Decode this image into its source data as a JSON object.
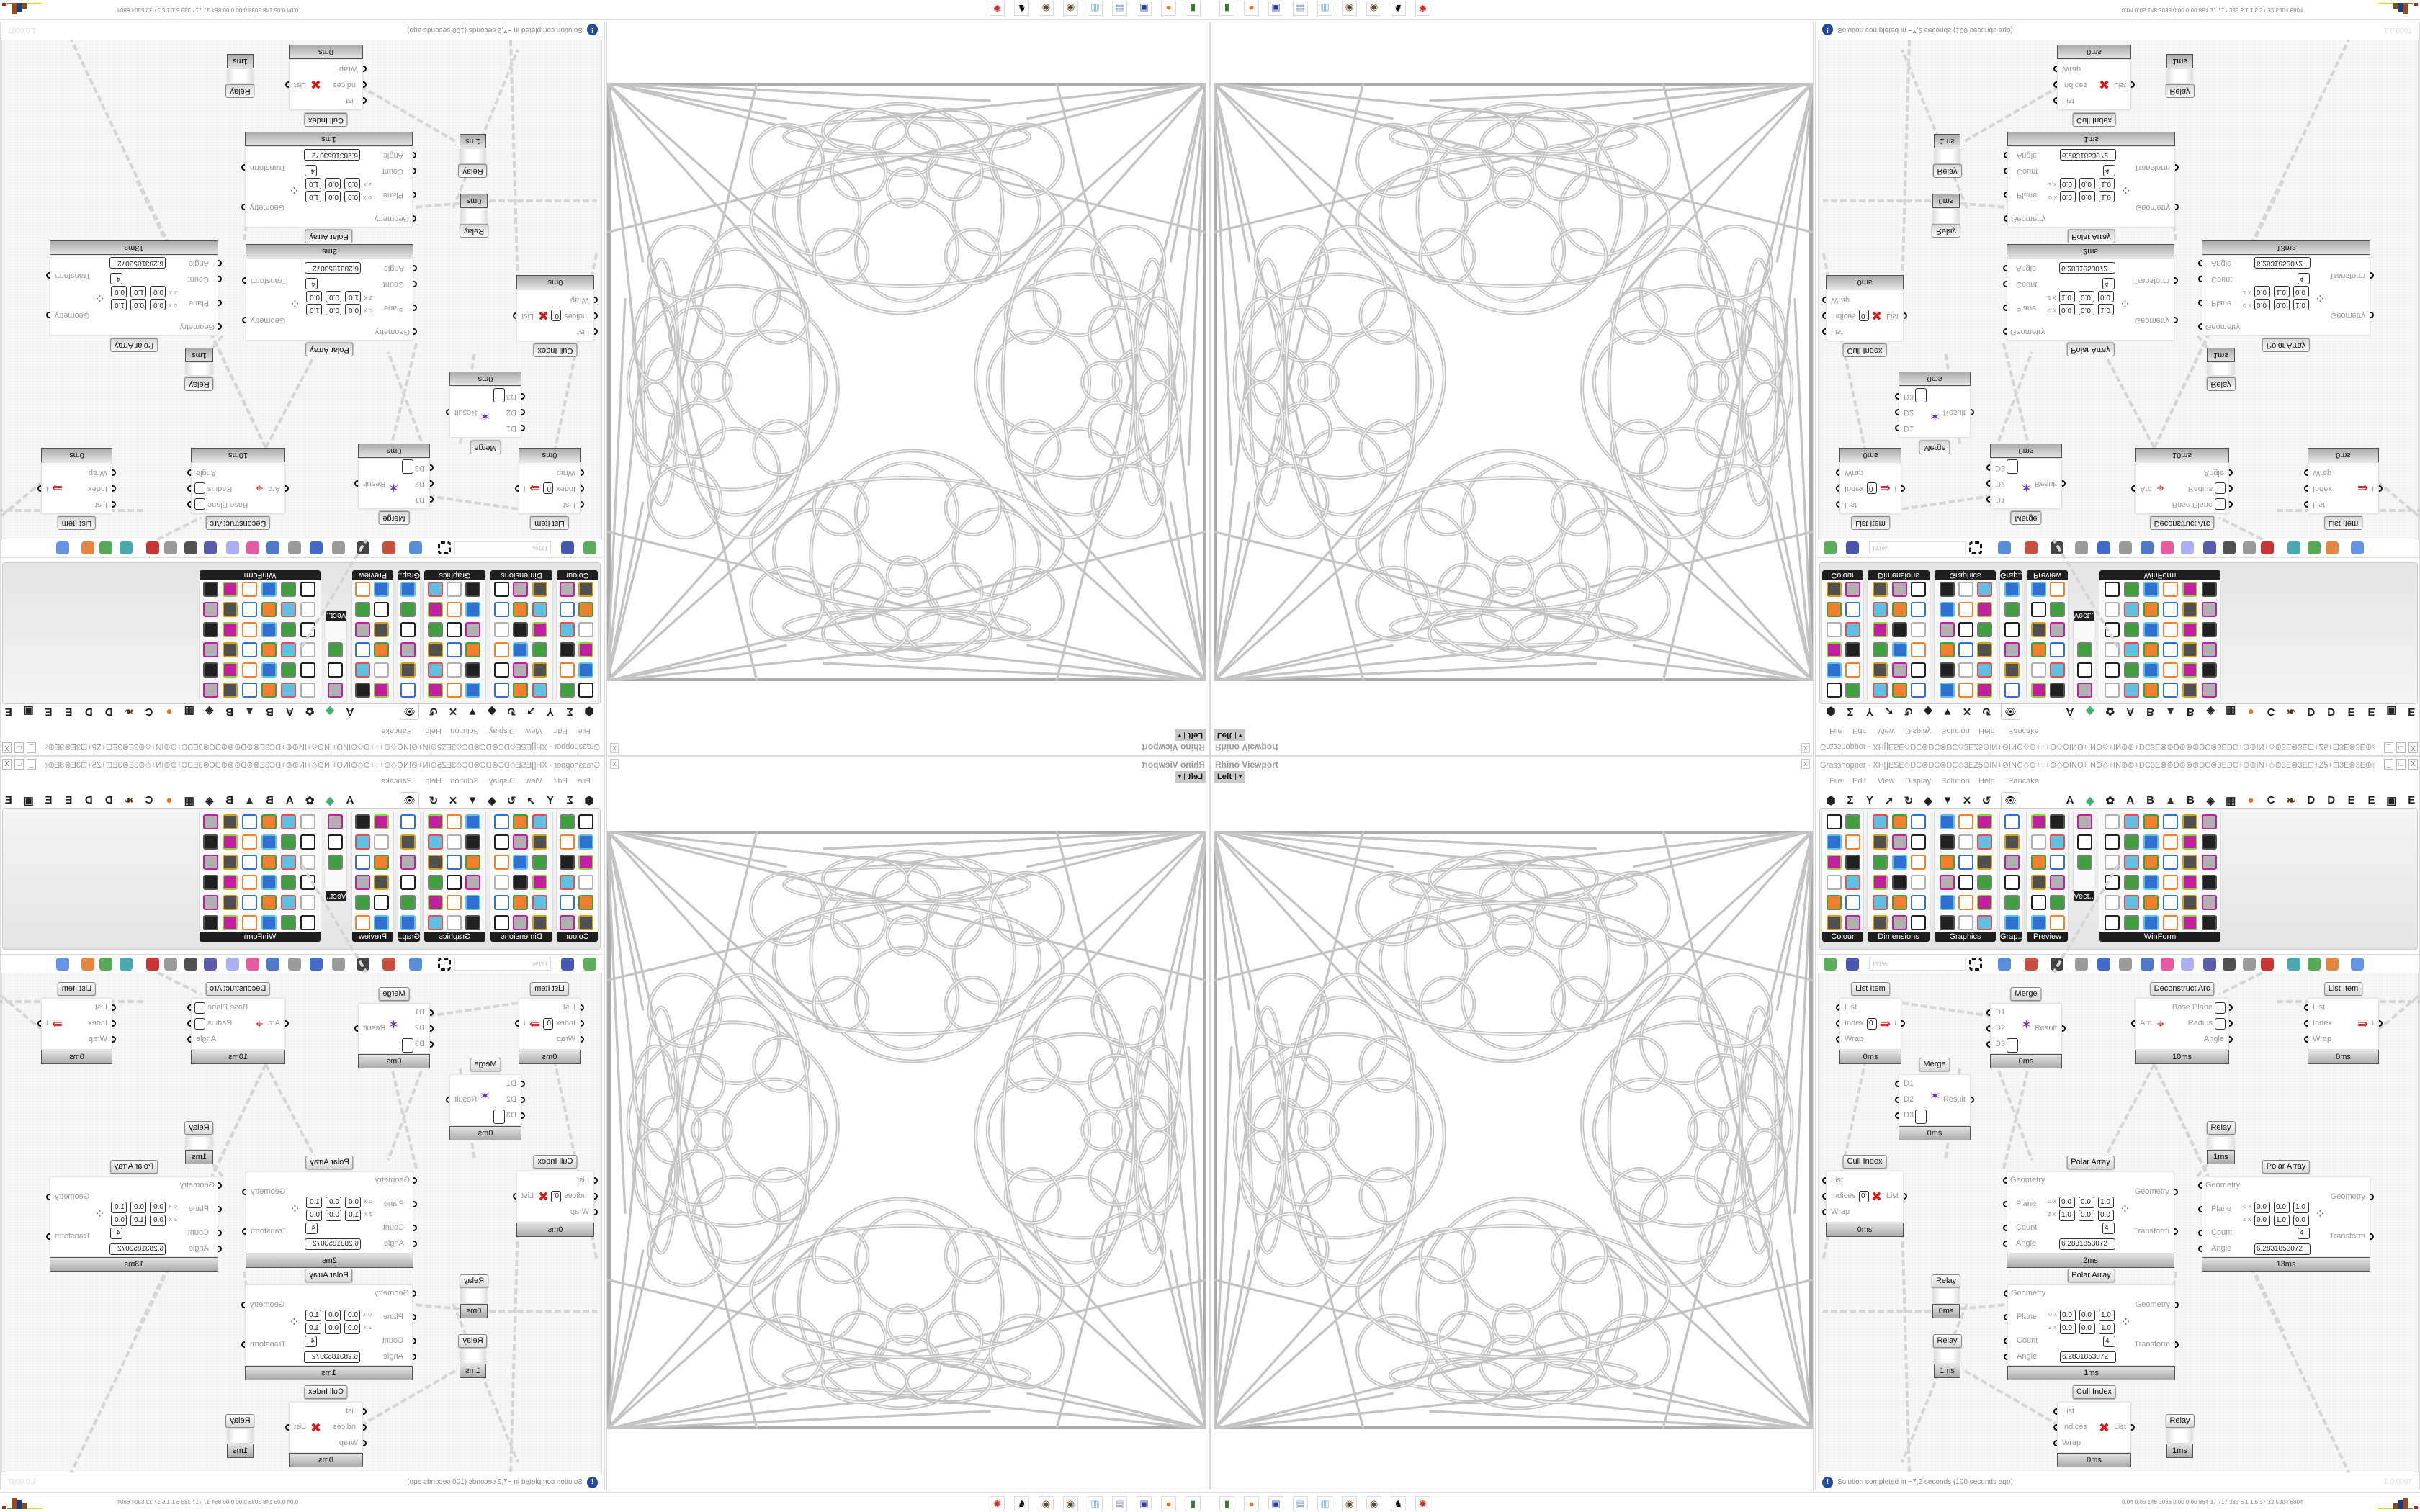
{
  "taskbar": {
    "icons": [
      {
        "name": "kaspersky-icon",
        "glyph": "▮",
        "color": "#2a7a2a"
      },
      {
        "name": "firefox-icon",
        "glyph": "●",
        "color": "#e8701a"
      },
      {
        "name": "floppy-64-icon",
        "glyph": "▣",
        "color": "#2a3aa0"
      },
      {
        "name": "scroll-icon",
        "glyph": "▤",
        "color": "#8aa0c0"
      },
      {
        "name": "notepad-icon",
        "glyph": "▥",
        "color": "#6ab0d0"
      },
      {
        "name": "pinecone-icon",
        "glyph": "◉",
        "color": "#5a4a2a"
      },
      {
        "name": "pinecone-icon",
        "glyph": "◉",
        "color": "#5a4a2a"
      },
      {
        "name": "horse-icon",
        "glyph": "♞",
        "color": "#000"
      },
      {
        "name": "red-app-icon",
        "glyph": "✺",
        "color": "#d02020"
      }
    ],
    "stats": "0.04 0.06 148 3038 0.00 0.00 864 37 717 333 6.1 1.5 37 32 5304 6804",
    "meter_colors": [
      "#e0d000",
      "#e0d000",
      "#e0d000",
      "#8b4a10",
      "#1a3a8a",
      "#a04a10",
      "#30b030",
      "#c02020"
    ]
  },
  "viewport": {
    "title": "Rhino Viewport",
    "close": "x",
    "view_name": "Left"
  },
  "grasshopper": {
    "title": "Grasshopper - XH[]ESE◇DC⊗DC⊗DC◇3EZ5⊕IN+⊘IN⊕◇⊕+++⊕◇⊕INO+IN⊕◇+IN⊕⊕+DC3E⊗⊕D⊕⊗⊕DC⊗3EDC+⊕⊕IN+◇⊕3E⊗3E⊞+Z5+⊞3E⊗3E⊕◇+⊗⊕3E⊞+DC...",
    "window_buttons": [
      "_",
      "□",
      "X"
    ],
    "menu": [
      "File",
      "Edit",
      "View",
      "Display",
      "Solution",
      "Help",
      "Pancake"
    ],
    "tabs_left": [
      "⬢",
      "Σ",
      "Y",
      "➚",
      "↻",
      "◆",
      "▼",
      "✕",
      "↺"
    ],
    "active_tab_icon": "👁",
    "tabs_right": [
      "A",
      "◆",
      "✿",
      "A",
      "B",
      "▲",
      "B",
      "◈",
      "▦",
      "●",
      "C",
      "❧",
      "D",
      "D",
      "E",
      "E",
      "▣",
      "E"
    ],
    "ribbon_panels": [
      {
        "label": "Colour"
      },
      {
        "label": "Dimensions"
      },
      {
        "label": "Graphics"
      },
      {
        "label": "Grap.."
      },
      {
        "label": "Preview"
      },
      {
        "label": "Vect.."
      },
      {
        "label": "WinForm"
      }
    ],
    "zoom": "111%",
    "nodes": [
      {
        "title": "List Item",
        "type": "item",
        "inputs": [
          "List",
          "Index",
          "Wrap"
        ],
        "index_value": "0",
        "outputs": [
          "i"
        ],
        "time": "0ms"
      },
      {
        "title": "Merge",
        "type": "merge",
        "inputs": [
          "D1",
          "D2",
          "D3"
        ],
        "outputs": [
          "Result"
        ],
        "time": "0ms"
      },
      {
        "title": "Deconstruct Arc",
        "type": "arc",
        "inputs": [
          "Arc"
        ],
        "outputs": [
          "Base Plane",
          "Radius",
          "Angle"
        ],
        "time": "10ms"
      },
      {
        "title": "List Item",
        "type": "item",
        "inputs": [
          "List",
          "Index",
          "Wrap"
        ],
        "outputs": [
          "i"
        ],
        "time": "0ms"
      },
      {
        "title": "Merge",
        "type": "merge",
        "inputs": [
          "D1",
          "D2",
          "D3"
        ],
        "outputs": [
          "Result"
        ],
        "time": "0ms"
      },
      {
        "title": "Relay",
        "type": "relay",
        "time": "1ms"
      },
      {
        "title": "Cull Index",
        "type": "cull",
        "inputs": [
          "List",
          "Indices",
          "Wrap"
        ],
        "index_value": "0",
        "outputs": [
          "List"
        ],
        "time": "0ms"
      },
      {
        "title": "Polar Array",
        "type": "polar",
        "inputs": [
          "Geometry",
          "Plane",
          "Count",
          "Angle"
        ],
        "outputs": [
          "Geometry",
          "Transform"
        ],
        "origin": [
          "0.0",
          "0.0",
          "1.0"
        ],
        "zaxis": [
          "1.0",
          "0.0",
          "0.0"
        ],
        "count": "4",
        "angle": "6.2831853072",
        "time": "2ms"
      },
      {
        "title": "Polar Array",
        "type": "polar",
        "inputs": [
          "Geometry",
          "Plane",
          "Count",
          "Angle"
        ],
        "outputs": [
          "Geometry",
          "Transform"
        ],
        "origin": [
          "0.0",
          "0.0",
          "1.0"
        ],
        "zaxis": [
          "0.0",
          "1.0",
          "0.0"
        ],
        "count": "4",
        "angle": "6.2831853072",
        "time": "13ms"
      },
      {
        "title": "Relay",
        "type": "relay",
        "time": "0ms"
      },
      {
        "title": "Polar Array",
        "type": "polar",
        "inputs": [
          "Geometry",
          "Plane",
          "Count",
          "Angle"
        ],
        "outputs": [
          "Geometry",
          "Transform"
        ],
        "origin": [
          "0.0",
          "0.0",
          "1.0"
        ],
        "zaxis": [
          "0.0",
          "0.0",
          "1.0"
        ],
        "count": "4",
        "angle": "6.2831853072",
        "time": "1ms"
      },
      {
        "title": "Relay",
        "type": "relay",
        "time": "1ms"
      },
      {
        "title": "Cull Index",
        "type": "cull",
        "inputs": [
          "List",
          "Indices",
          "Wrap"
        ],
        "outputs": [
          "List"
        ],
        "time": "0ms"
      },
      {
        "title": "Relay",
        "type": "relay",
        "time": "1ms"
      }
    ],
    "status": "Solution completed in ~7,2 seconds (100 seconds ago)",
    "version": "1.0.0007"
  },
  "colors": {
    "status_icon": "#234a9c",
    "ribbon_label_bg": "#1e1e1e",
    "model_stroke": "#c4c4c4",
    "wire": "#d6d6d6"
  }
}
